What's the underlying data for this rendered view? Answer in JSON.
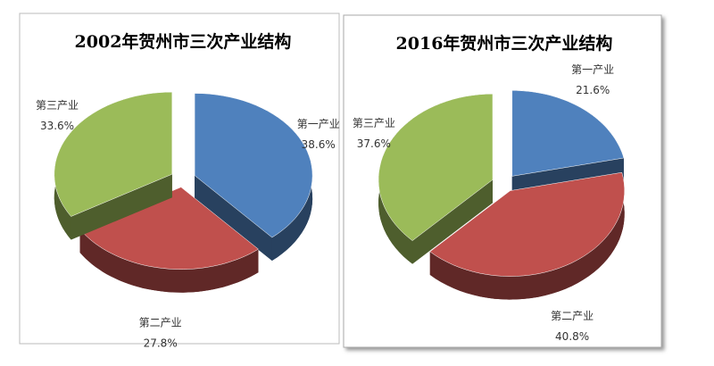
{
  "chart_data": [
    {
      "type": "pie",
      "title": "2002年贺州市三次产业结构",
      "categories": [
        "第一产业",
        "第二产业",
        "第三产业"
      ],
      "values": [
        38.6,
        27.8,
        33.6
      ],
      "value_labels": [
        "38.6%",
        "27.8%",
        "33.6%"
      ],
      "colors": [
        "#4f81bd",
        "#c0504d",
        "#9bbb59"
      ]
    },
    {
      "type": "pie",
      "title": "2016年贺州市三次产业结构",
      "categories": [
        "第一产业",
        "第二产业",
        "第三产业"
      ],
      "values": [
        21.6,
        40.8,
        37.6
      ],
      "value_labels": [
        "21.6%",
        "40.8%",
        "37.6%"
      ],
      "colors": [
        "#4f81bd",
        "#c0504d",
        "#9bbb59"
      ]
    }
  ]
}
